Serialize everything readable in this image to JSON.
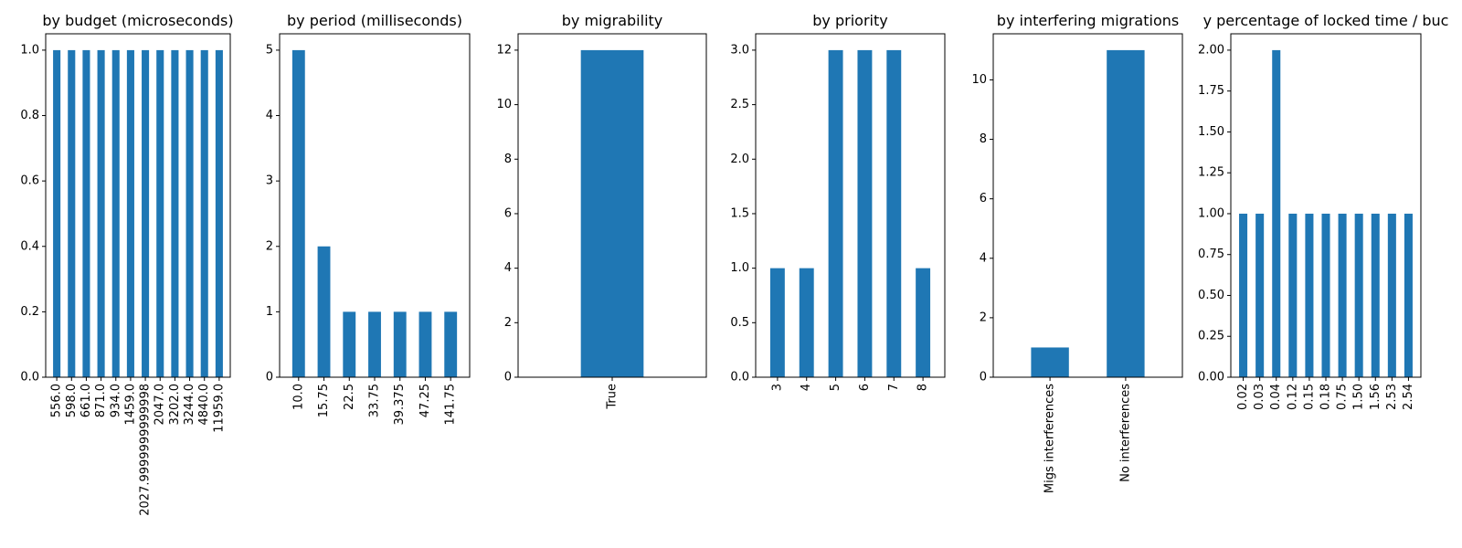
{
  "colors": {
    "bar": "#1f77b4",
    "axis": "#000000",
    "background": "#ffffff"
  },
  "chart_data": [
    {
      "type": "bar",
      "title": "by budget (microseconds)",
      "categories": [
        "556.0",
        "598.0",
        "661.0",
        "871.0",
        "934.0",
        "1459.0",
        "2027.9999999999998",
        "2047.0",
        "3202.0",
        "3244.0",
        "4840.0",
        "11959.0"
      ],
      "values": [
        1,
        1,
        1,
        1,
        1,
        1,
        1,
        1,
        1,
        1,
        1,
        1
      ],
      "ylim": [
        0,
        1.05
      ],
      "yticks": [
        0.0,
        0.2,
        0.4,
        0.6,
        0.8,
        1.0
      ],
      "ytick_labels": [
        "0.0",
        "0.2",
        "0.4",
        "0.6",
        "0.8",
        "1.0"
      ],
      "grid": false,
      "legend": "none"
    },
    {
      "type": "bar",
      "title": "by period (milliseconds)",
      "categories": [
        "10.0",
        "15.75",
        "22.5",
        "33.75",
        "39.375",
        "47.25",
        "141.75"
      ],
      "values": [
        5,
        2,
        1,
        1,
        1,
        1,
        1
      ],
      "ylim": [
        0,
        5.25
      ],
      "yticks": [
        0,
        1,
        2,
        3,
        4,
        5
      ],
      "ytick_labels": [
        "0",
        "1",
        "2",
        "3",
        "4",
        "5"
      ],
      "grid": false,
      "legend": "none"
    },
    {
      "type": "bar",
      "title": "by migrability",
      "categories": [
        "True"
      ],
      "values": [
        12
      ],
      "ylim": [
        0,
        12.6
      ],
      "yticks": [
        0,
        2,
        4,
        6,
        8,
        10,
        12
      ],
      "ytick_labels": [
        "0",
        "2",
        "4",
        "6",
        "8",
        "10",
        "12"
      ],
      "grid": false,
      "legend": "none"
    },
    {
      "type": "bar",
      "title": "by priority",
      "categories": [
        "3",
        "4",
        "5",
        "6",
        "7",
        "8"
      ],
      "values": [
        1,
        1,
        3,
        3,
        3,
        1
      ],
      "ylim": [
        0,
        3.15
      ],
      "yticks": [
        0.0,
        0.5,
        1.0,
        1.5,
        2.0,
        2.5,
        3.0
      ],
      "ytick_labels": [
        "0.0",
        "0.5",
        "1.0",
        "1.5",
        "2.0",
        "2.5",
        "3.0"
      ],
      "grid": false,
      "legend": "none"
    },
    {
      "type": "bar",
      "title": "by interfering migrations",
      "categories": [
        "Migs interferences",
        "No interferences"
      ],
      "values": [
        1,
        11
      ],
      "ylim": [
        0,
        11.55
      ],
      "yticks": [
        0,
        2,
        4,
        6,
        8,
        10
      ],
      "ytick_labels": [
        "0",
        "2",
        "4",
        "6",
        "8",
        "10"
      ],
      "grid": false,
      "legend": "none"
    },
    {
      "type": "bar",
      "title": "y percentage of locked time / buc",
      "categories": [
        "0.02",
        "0.03",
        "0.04",
        "0.12",
        "0.15",
        "0.18",
        "0.75",
        "1.50",
        "1.56",
        "2.53",
        "2.54"
      ],
      "values": [
        1,
        1,
        2,
        1,
        1,
        1,
        1,
        1,
        1,
        1,
        1
      ],
      "ylim": [
        0,
        2.1
      ],
      "yticks": [
        0.0,
        0.25,
        0.5,
        0.75,
        1.0,
        1.25,
        1.5,
        1.75,
        2.0
      ],
      "ytick_labels": [
        "0.00",
        "0.25",
        "0.50",
        "0.75",
        "1.00",
        "1.25",
        "1.50",
        "1.75",
        "2.00"
      ],
      "grid": false,
      "legend": "none"
    }
  ]
}
